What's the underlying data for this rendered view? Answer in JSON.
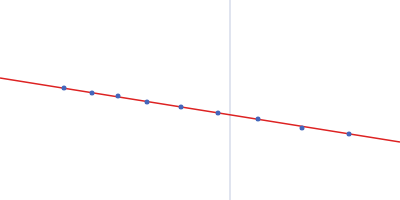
{
  "chart_data": {
    "type": "scatter",
    "xlim": [
      0,
      400
    ],
    "ylim": [
      0,
      200
    ],
    "tick_labels": false,
    "grid": false,
    "series": [
      {
        "type": "line",
        "color": "#cfd6e6",
        "x": [
          230,
          230
        ],
        "values": [
          0,
          200
        ]
      },
      {
        "type": "line",
        "color": "#dd2222",
        "x": [
          0,
          400
        ],
        "values": [
          122,
          58
        ]
      },
      {
        "type": "scatter",
        "color": "#4466bb",
        "marker": "circle",
        "x": [
          64,
          92,
          118,
          147,
          181,
          218,
          258,
          302,
          349
        ],
        "values": [
          112,
          107,
          104,
          98,
          93,
          87,
          81,
          72,
          66
        ]
      }
    ]
  }
}
